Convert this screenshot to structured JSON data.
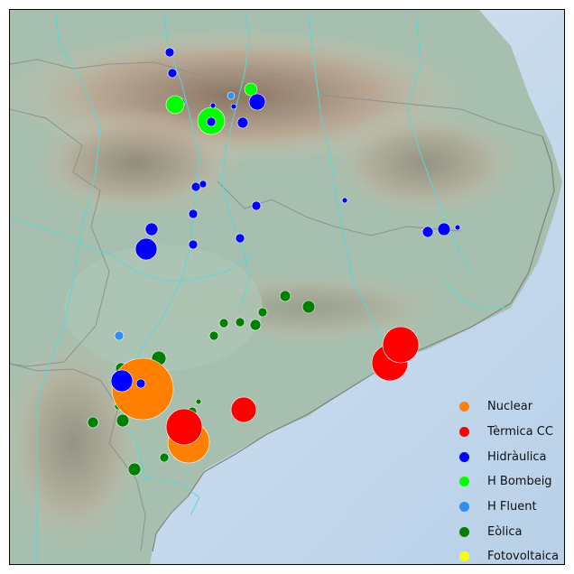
{
  "legend": {
    "items": [
      {
        "key": "nuclear",
        "label": "Nuclear",
        "color": "#ff8000"
      },
      {
        "key": "termica",
        "label": "Tèrmica CC",
        "color": "#ff0000"
      },
      {
        "key": "hidraulica",
        "label": "Hidràulica",
        "color": "#0000ff"
      },
      {
        "key": "bombeig",
        "label": "H Bombeig",
        "color": "#00ff00"
      },
      {
        "key": "fluent",
        "label": "H Fluent",
        "color": "#3090f0"
      },
      {
        "key": "eolica",
        "label": "Eòlica",
        "color": "#008000"
      },
      {
        "key": "fotovoltaica",
        "label": "Fotovoltaica",
        "color": "#ffff00"
      }
    ]
  },
  "map": {
    "terrain_colors": {
      "sea": "#c2d8ec",
      "lowland": "#a9c0b0",
      "hills": "#cfc2ad",
      "mountains": "#9a8675",
      "peaks": "#e8e0d8"
    },
    "river_color": "#5ad8d8",
    "border_color": "#909090"
  }
}
